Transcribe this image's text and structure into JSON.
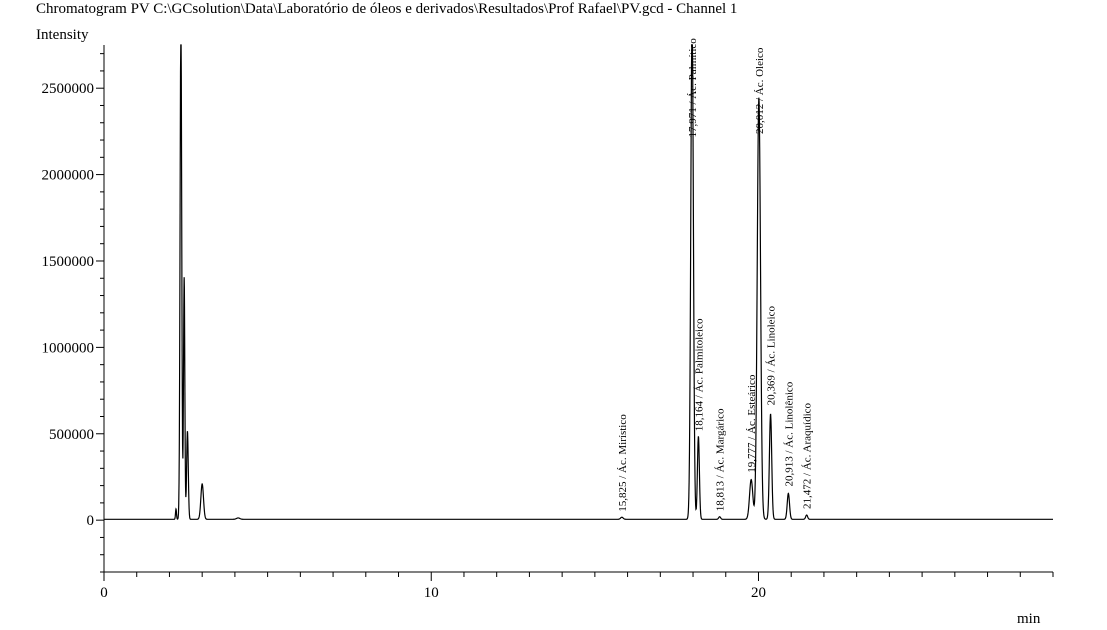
{
  "chart_data": {
    "type": "line",
    "title": "Chromatogram PV C:\\GCsolution\\Data\\Laboratório de óleos e derivados\\Resultados\\Prof Rafael\\PV.gcd - Channel 1",
    "xlabel": "min",
    "ylabel": "Intensity",
    "xlim": [
      0,
      29
    ],
    "ylim": [
      -300000,
      2750000
    ],
    "x_major_ticks": [
      0,
      10,
      20
    ],
    "x_major_labels": [
      "0",
      "10",
      "20"
    ],
    "y_major_ticks": [
      0,
      500000,
      1000000,
      1500000,
      2000000,
      2500000
    ],
    "y_major_labels": [
      "0",
      "500000",
      "1000000",
      "1500000",
      "2000000",
      "2500000"
    ],
    "baseline": 5000,
    "peaks": [
      {
        "rt": 2.2,
        "height": 60000,
        "width": 0.015
      },
      {
        "rt": 2.35,
        "height": 2900000,
        "width": 0.025
      },
      {
        "rt": 2.45,
        "height": 1400000,
        "width": 0.02
      },
      {
        "rt": 2.55,
        "height": 510000,
        "width": 0.025
      },
      {
        "rt": 3.0,
        "height": 205000,
        "width": 0.04
      },
      {
        "rt": 4.1,
        "height": 8000,
        "width": 0.05
      },
      {
        "rt": 15.825,
        "height": 12000,
        "width": 0.04
      },
      {
        "rt": 17.971,
        "height": 2900000,
        "width": 0.04
      },
      {
        "rt": 18.164,
        "height": 480000,
        "width": 0.03
      },
      {
        "rt": 18.813,
        "height": 15000,
        "width": 0.03
      },
      {
        "rt": 19.777,
        "height": 230000,
        "width": 0.05
      },
      {
        "rt": 20.012,
        "height": 2440000,
        "width": 0.05
      },
      {
        "rt": 20.369,
        "height": 610000,
        "width": 0.035
      },
      {
        "rt": 20.913,
        "height": 150000,
        "width": 0.035
      },
      {
        "rt": 21.472,
        "height": 25000,
        "width": 0.03
      }
    ],
    "annotations": [
      {
        "rt": 15.825,
        "y": 14000,
        "text": "15,825 / Ác. Mirístico"
      },
      {
        "rt": 17.971,
        "y": 2180000,
        "text": "17,971 / Ác. Palmítico"
      },
      {
        "rt": 18.164,
        "y": 480000,
        "text": "18,164 / Ác. Palmitoleico"
      },
      {
        "rt": 18.813,
        "y": 17000,
        "text": "18,813 / Ác. Margárico"
      },
      {
        "rt": 19.777,
        "y": 240000,
        "text": "19,777 / Ác. Esteárico"
      },
      {
        "rt": 20.012,
        "y": 2200000,
        "text": "20,012 / Ác. Oleico"
      },
      {
        "rt": 20.369,
        "y": 630000,
        "text": "20,369 / Ác. Linoleico"
      },
      {
        "rt": 20.913,
        "y": 160000,
        "text": "20,913 / Ác. Linolênico"
      },
      {
        "rt": 21.472,
        "y": 30000,
        "text": "21,472 / Ác. Araquídico"
      }
    ],
    "grid": false,
    "line_color": "#000000"
  }
}
